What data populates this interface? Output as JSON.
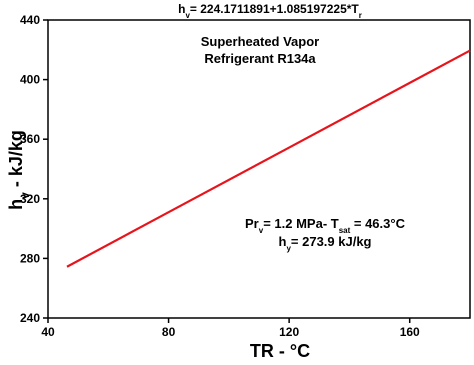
{
  "chart_data": {
    "type": "line",
    "title": [
      {
        "text": "h"
      },
      {
        "text": "v",
        "sub": true
      },
      {
        "text": "= 224.1711891+1.085197225*T"
      },
      {
        "text": "r",
        "sub": true
      }
    ],
    "annotations": [
      [
        {
          "text": "Superheated Vapor"
        }
      ],
      [
        {
          "text": "Refrigerant R134a"
        }
      ],
      [
        {
          "text": "Pr"
        },
        {
          "text": "v",
          "sub": true
        },
        {
          "text": "= 1.2 MPa- T"
        },
        {
          "text": "sat",
          "sub": true
        },
        {
          "text": " = 46.3°C"
        }
      ],
      [
        {
          "text": "h"
        },
        {
          "text": "y",
          "sub": true
        },
        {
          "text": "= 273.9 kJ/kg"
        }
      ]
    ],
    "x_label": "TR - °C",
    "y_label": [
      {
        "text": "h"
      },
      {
        "text": "v",
        "sub": true
      },
      {
        "text": " - kJ/kg"
      }
    ],
    "x": [
      46.3,
      80,
      120,
      160,
      180
    ],
    "series": [
      {
        "color": "#e8141c",
        "values": [
          274.4,
          311.0,
          354.4,
          397.8,
          419.5
        ]
      }
    ],
    "xlim": [
      40,
      180
    ],
    "xticks": [
      40,
      80,
      120,
      160
    ],
    "ylim": [
      240,
      440
    ],
    "yticks": [
      240,
      280,
      320,
      360,
      400,
      440
    ]
  }
}
